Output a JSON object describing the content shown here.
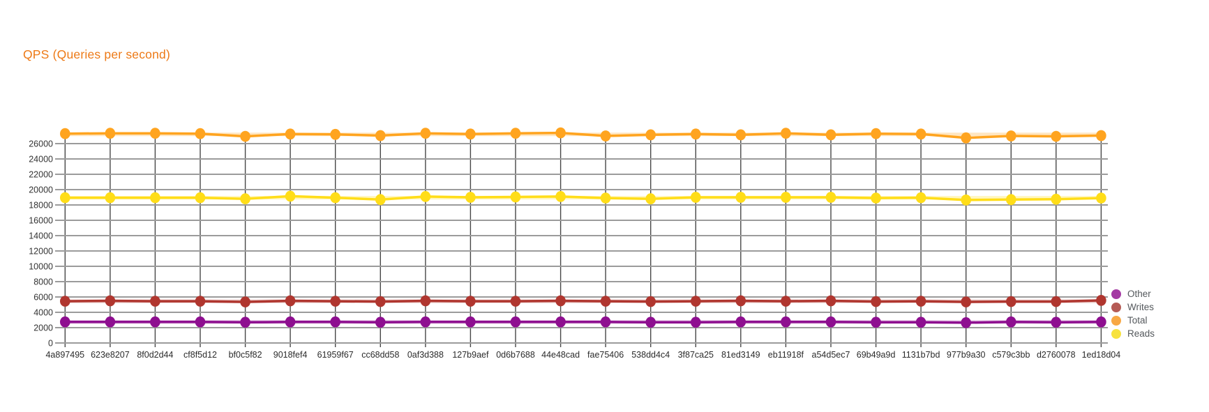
{
  "title": {
    "text": "QPS (Queries per second)",
    "color": "#ED7A17"
  },
  "legend": {
    "position": "right",
    "items": [
      {
        "label": "Other",
        "color": "#A439A3"
      },
      {
        "label": "Writes",
        "color": "#B55B55"
      },
      {
        "label": "Total",
        "color": "#F8A844"
      },
      {
        "label": "Reads",
        "color": "#F7E23E"
      }
    ]
  },
  "chart_data": {
    "type": "line",
    "title": "QPS (Queries per second)",
    "xlabel": "",
    "ylabel": "",
    "ylim": [
      0,
      27500
    ],
    "yticks": [
      0,
      2000,
      4000,
      6000,
      8000,
      10000,
      12000,
      14000,
      16000,
      18000,
      20000,
      22000,
      24000,
      26000
    ],
    "grid": true,
    "legend_position": "right",
    "categories": [
      "4a897495",
      "623e8207",
      "8f0d2d44",
      "cf8f5d12",
      "bf0c5f82",
      "9018fef4",
      "61959f67",
      "cc68dd58",
      "0af3d388",
      "127b9aef",
      "0d6b7688",
      "44e48cad",
      "fae75406",
      "538dd4c4",
      "3f87ca25",
      "81ed3149",
      "eb11918f",
      "a54d5ec7",
      "69b49a9d",
      "1131b7bd",
      "977b9a30",
      "c579c3bb",
      "d2760078",
      "1ed18d04"
    ],
    "series": [
      {
        "name": "Total",
        "color": "#FFA41F",
        "legend_color": "#F8A844",
        "baseline": 27200,
        "values": [
          27300,
          27350,
          27350,
          27300,
          26950,
          27250,
          27200,
          27050,
          27350,
          27250,
          27350,
          27400,
          27000,
          27150,
          27250,
          27150,
          27350,
          27150,
          27300,
          27250,
          26750,
          27000,
          26950,
          27050
        ]
      },
      {
        "name": "Reads",
        "color": "#FFDD18",
        "legend_color": "#F7E23E",
        "baseline": 18950,
        "values": [
          18950,
          18950,
          18950,
          18950,
          18800,
          19150,
          18950,
          18700,
          19100,
          19000,
          19050,
          19100,
          18900,
          18800,
          19000,
          19000,
          19000,
          19000,
          18900,
          18950,
          18650,
          18700,
          18750,
          18900
        ]
      },
      {
        "name": "Writes",
        "color": "#B0362F",
        "legend_color": "#B55B55",
        "baseline": 5450,
        "values": [
          5450,
          5500,
          5450,
          5450,
          5350,
          5500,
          5450,
          5400,
          5500,
          5450,
          5450,
          5500,
          5450,
          5400,
          5450,
          5500,
          5450,
          5500,
          5400,
          5450,
          5350,
          5400,
          5400,
          5550
        ]
      },
      {
        "name": "Other",
        "color": "#8E0F90",
        "legend_color": "#A439A3",
        "baseline": 2740,
        "values": [
          2750,
          2750,
          2750,
          2750,
          2700,
          2750,
          2750,
          2700,
          2750,
          2750,
          2750,
          2750,
          2750,
          2700,
          2700,
          2750,
          2750,
          2750,
          2700,
          2700,
          2650,
          2750,
          2700,
          2750
        ]
      }
    ]
  },
  "axis_label_color": "#333333",
  "grid_h_color": "#9B9B9B",
  "grid_v_color": "#474747"
}
